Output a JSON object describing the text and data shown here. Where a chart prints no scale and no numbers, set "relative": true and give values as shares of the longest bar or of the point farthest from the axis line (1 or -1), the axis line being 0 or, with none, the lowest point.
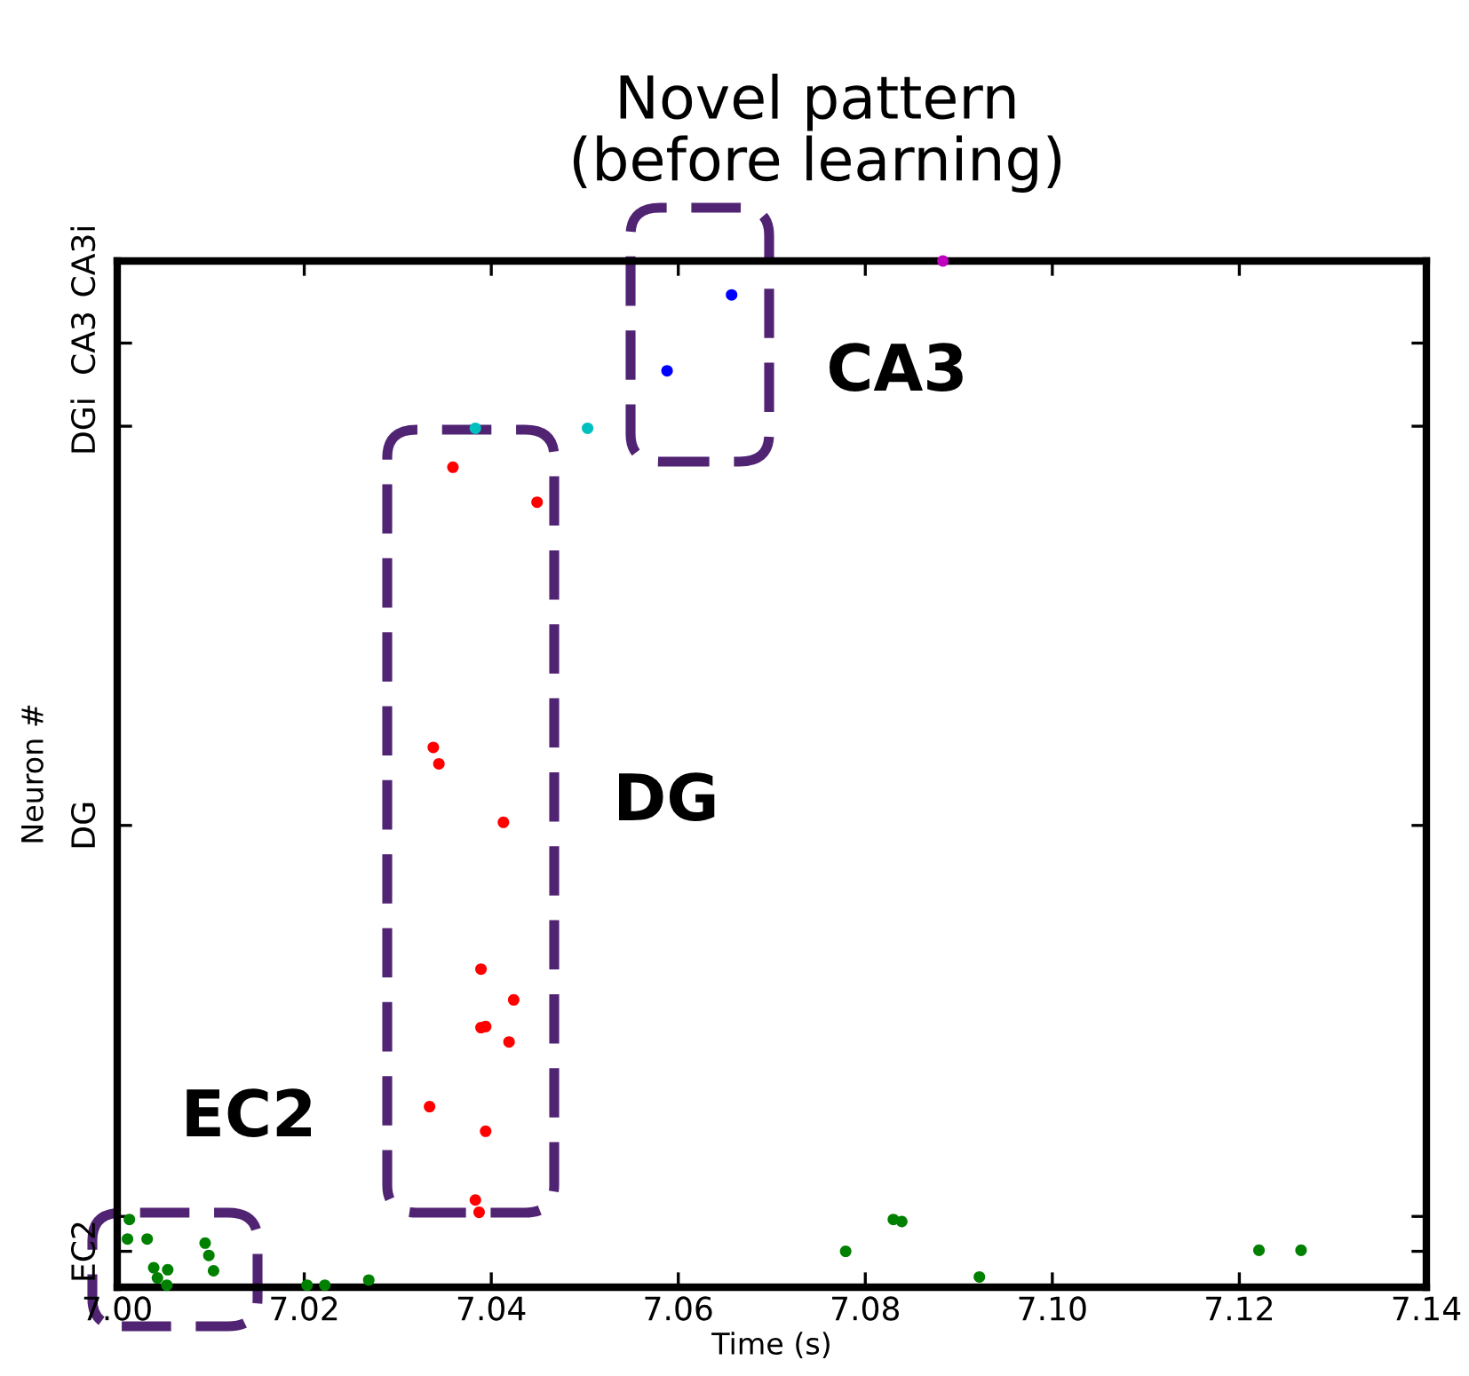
{
  "chart_data": {
    "type": "scatter",
    "title": "Novel pattern\n(before learning)",
    "xlabel": "Time (s)",
    "ylabel": "Neuron #",
    "relative": true,
    "xlim": [
      7.0,
      7.14
    ],
    "xticks": [
      {
        "value": 7.0,
        "label": "7.00"
      },
      7.02,
      7.04,
      7.06,
      7.08,
      {
        "value": 7.1,
        "label": "7.10"
      },
      7.12,
      7.14
    ],
    "marker": "circle",
    "grid": false,
    "legend": false,
    "annotations": [
      "EC2",
      "DG",
      "CA3",
      "EC2",
      "DG",
      "DGi",
      "CA3",
      "CA3i"
    ],
    "series": [
      {
        "color": "#008000",
        "x": [
          7.0013,
          7.0011,
          7.0032,
          7.0039,
          7.0054,
          7.0043,
          7.0053,
          7.0094,
          7.0098,
          7.0103,
          7.0203,
          7.0222,
          7.0269,
          7.0779,
          7.083,
          7.0839,
          7.0922,
          7.1221,
          7.1266
        ],
        "values": [
          0.066,
          0.047,
          0.047,
          0.019,
          0.017,
          0.009,
          0.002,
          0.043,
          0.031,
          0.016,
          0.002,
          0.002,
          0.007,
          0.035,
          0.066,
          0.064,
          0.01,
          0.036,
          0.036
        ]
      },
      {
        "color": "#ff0000",
        "x": [
          7.0359,
          7.0449,
          7.0338,
          7.0344,
          7.0413,
          7.0389,
          7.0424,
          7.0389,
          7.0394,
          7.0419,
          7.0334,
          7.0394,
          7.0383,
          7.0387
        ],
        "values": [
          0.799,
          0.765,
          0.526,
          0.51,
          0.453,
          0.31,
          0.28,
          0.253,
          0.254,
          0.239,
          0.176,
          0.152,
          0.085,
          0.073
        ]
      },
      {
        "color": "#00bfbf",
        "x": [
          7.0383,
          7.0503
        ],
        "values": [
          0.837,
          0.837
        ]
      },
      {
        "color": "#0000ff",
        "x": [
          7.0588,
          7.0657
        ],
        "values": [
          0.893,
          0.967
        ]
      },
      {
        "color": "#bf00bf",
        "x": [
          7.0883
        ],
        "values": [
          1
        ]
      }
    ]
  }
}
